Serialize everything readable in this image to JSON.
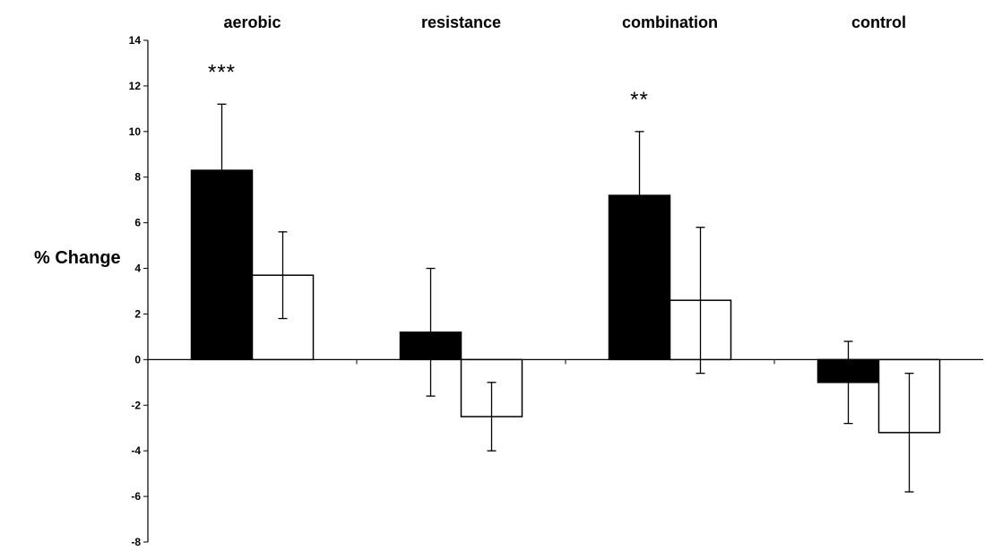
{
  "chart_data": {
    "type": "bar",
    "title": "",
    "xlabel": "",
    "ylabel": "% Change",
    "ylim": [
      -8,
      14
    ],
    "yticks": [
      -8,
      -6,
      -4,
      -2,
      0,
      2,
      4,
      6,
      8,
      10,
      12,
      14
    ],
    "grid": false,
    "legend": "none",
    "categories": [
      "aerobic",
      "resistance",
      "combination",
      "control"
    ],
    "series": [
      {
        "fill": "#000000",
        "values": [
          8.3,
          1.2,
          7.2,
          -1.0
        ],
        "error": [
          2.9,
          2.8,
          2.8,
          1.8
        ]
      },
      {
        "fill": "#ffffff",
        "values": [
          3.7,
          -2.5,
          2.6,
          -3.2
        ],
        "error": [
          1.9,
          1.5,
          3.2,
          2.6
        ]
      }
    ],
    "annotations": [
      {
        "category": "aerobic",
        "text": "***"
      },
      {
        "category": "combination",
        "text": "**"
      }
    ]
  }
}
